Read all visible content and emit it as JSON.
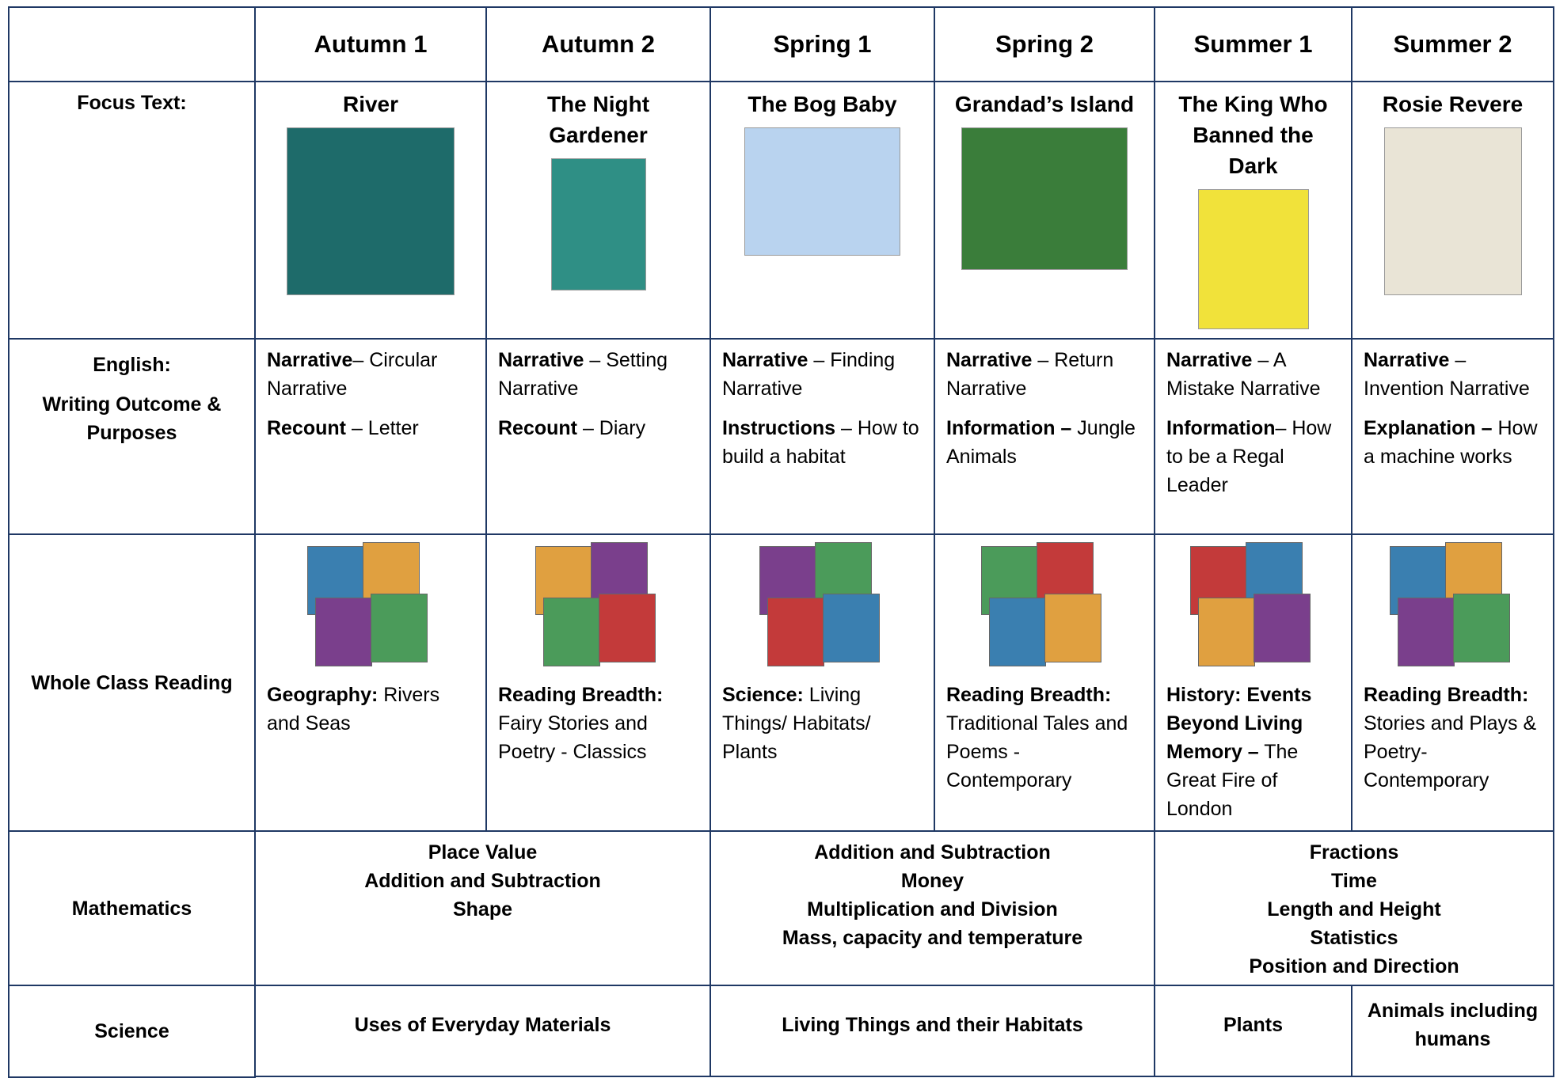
{
  "header": {
    "terms": [
      "Autumn 1",
      "Autumn 2",
      "Spring 1",
      "Spring 2",
      "Summer 1",
      "Summer 2"
    ]
  },
  "focus": {
    "label": "Focus Text:",
    "titles": [
      "River",
      "The Night Gardener",
      "The Bog Baby",
      "Grandad’s Island",
      "The King Who Banned the Dark",
      "Rosie Revere"
    ]
  },
  "english": {
    "label": "English:",
    "sublabel": "Writing Outcome & Purposes",
    "cells": [
      [
        {
          "bold": "Narrative",
          "text": "– Circular Narrative"
        },
        {
          "bold": "Recount",
          "text": " – Letter"
        }
      ],
      [
        {
          "bold": "Narrative",
          "text": " – Setting Narrative"
        },
        {
          "bold": "Recount",
          "text": " – Diary"
        }
      ],
      [
        {
          "bold": "Narrative",
          "text": " – Finding Narrative"
        },
        {
          "bold": "Instructions",
          "text": " – How to build a habitat"
        }
      ],
      [
        {
          "bold": "Narrative",
          "text": " – Return Narrative"
        },
        {
          "bold": "Information –",
          "text": " Jungle Animals"
        }
      ],
      [
        {
          "bold": "Narrative",
          "text": " – A Mistake Narrative"
        },
        {
          "bold": "Information",
          "text": "– How to be a Regal Leader"
        }
      ],
      [
        {
          "bold": "Narrative",
          "text": " – Invention Narrative"
        },
        {
          "bold": "Explanation –",
          "text": " How a machine works"
        }
      ]
    ]
  },
  "reading": {
    "label": "Whole Class Reading",
    "cells": [
      {
        "bold": "Geography:",
        "text": " Rivers and Seas"
      },
      {
        "bold": "Reading Breadth:",
        "text": " Fairy Stories and Poetry - Classics"
      },
      {
        "bold": "Science:",
        "text": " Living Things/ Habitats/ Plants"
      },
      {
        "bold": "Reading Breadth:",
        "text": " Traditional Tales and Poems - Contemporary"
      },
      {
        "bold": "History: Events Beyond Living Memory –",
        "text": " The Great Fire of London"
      },
      {
        "bold": "Reading Breadth:",
        "text": " Stories and Plays & Poetry- Contemporary"
      }
    ]
  },
  "maths": {
    "label": "Mathematics",
    "groups": [
      [
        "Place Value",
        "Addition and Subtraction",
        "Shape"
      ],
      [
        "Addition and Subtraction",
        "Money",
        "Multiplication and Division",
        "Mass, capacity and temperature"
      ],
      [
        "Fractions",
        "Time",
        "Length and Height",
        "Statistics",
        "Position and Direction"
      ]
    ]
  },
  "science": {
    "label": "Science",
    "cells": [
      "Uses of Everyday Materials",
      "Living Things and their Habitats",
      "Plants",
      "Animals including humans"
    ]
  }
}
